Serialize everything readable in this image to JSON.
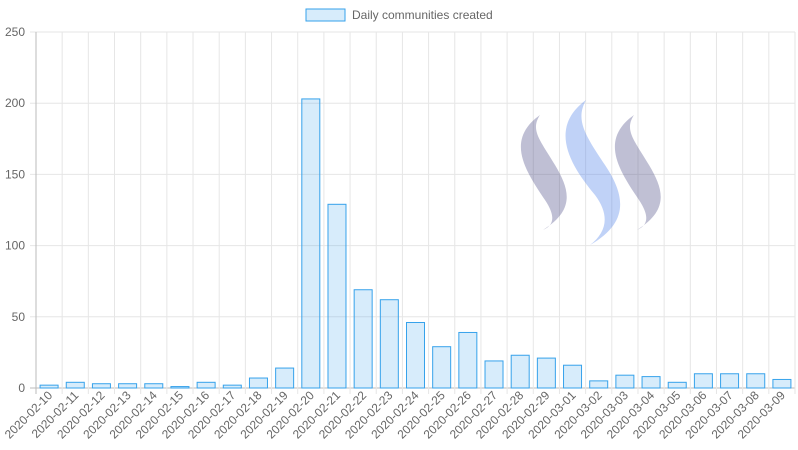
{
  "chart_data": {
    "type": "bar",
    "categories": [
      "2020-02-10",
      "2020-02-11",
      "2020-02-12",
      "2020-02-13",
      "2020-02-14",
      "2020-02-15",
      "2020-02-16",
      "2020-02-17",
      "2020-02-18",
      "2020-02-19",
      "2020-02-20",
      "2020-02-21",
      "2020-02-22",
      "2020-02-23",
      "2020-02-24",
      "2020-02-25",
      "2020-02-26",
      "2020-02-27",
      "2020-02-28",
      "2020-02-29",
      "2020-03-01",
      "2020-03-02",
      "2020-03-03",
      "2020-03-04",
      "2020-03-05",
      "2020-03-06",
      "2020-03-07",
      "2020-03-08",
      "2020-03-09"
    ],
    "series": [
      {
        "name": "Daily communities created",
        "color": "#36a2eb",
        "values": [
          2,
          4,
          3,
          3,
          3,
          1,
          4,
          2,
          7,
          14,
          203,
          129,
          69,
          62,
          46,
          29,
          39,
          19,
          23,
          21,
          16,
          5,
          9,
          8,
          4,
          10,
          10,
          10,
          6
        ]
      }
    ],
    "ylim": [
      0,
      250
    ],
    "yticks": [
      0,
      50,
      100,
      150,
      200,
      250
    ],
    "grid": true,
    "legend": "top"
  }
}
